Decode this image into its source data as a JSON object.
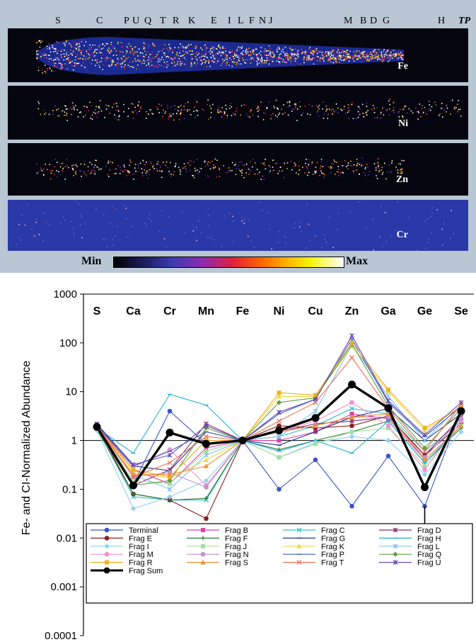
{
  "maps": {
    "fragment_labels": [
      "S",
      "C",
      "P",
      "U",
      "Q",
      "T",
      "R",
      "K",
      "E",
      "I",
      "L",
      "F",
      "N",
      "J",
      "M",
      "B",
      "D",
      "G",
      "H",
      "TP"
    ],
    "strips": [
      {
        "element": "Fe",
        "color_bg": "#05050f"
      },
      {
        "element": "Ni",
        "color_bg": "#05050f"
      },
      {
        "element": "Zn",
        "color_bg": "#05050f"
      },
      {
        "element": "Cr",
        "color_bg": "#2b39a8"
      }
    ],
    "scale": {
      "min_label": "Min",
      "max_label": "Max"
    }
  },
  "chart_data": {
    "type": "line",
    "ylabel": "Fe- and CI-Normalized Abundance",
    "y_scale": "log",
    "ylim": [
      0.0001,
      1000
    ],
    "y_ticks": [
      "1000",
      "100",
      "10",
      "1",
      "0.1",
      "0.01",
      "0.001",
      "0.0001"
    ],
    "categories": [
      "S",
      "Ca",
      "Cr",
      "Mn",
      "Fe",
      "Ni",
      "Cu",
      "Zn",
      "Ga",
      "Ge",
      "Se"
    ],
    "reference_line": 1,
    "series": [
      {
        "name": "Terminal",
        "color": "#3a55c8",
        "marker": "circle",
        "values": [
          1.9,
          0.13,
          4.0,
          0.85,
          1,
          0.1,
          0.4,
          0.045,
          0.48,
          0.045,
          4.2
        ]
      },
      {
        "name": "Frag B",
        "color": "#e040a0",
        "marker": "square",
        "values": [
          2.0,
          0.25,
          0.13,
          0.7,
          1,
          1.0,
          1.5,
          3.5,
          2.8,
          0.4,
          2.0
        ]
      },
      {
        "name": "Frag C",
        "color": "#30c0c8",
        "marker": "x",
        "values": [
          1.8,
          0.07,
          0.06,
          0.06,
          1,
          1.2,
          2.0,
          4.5,
          3.5,
          0.6,
          2.5
        ]
      },
      {
        "name": "Frag D",
        "color": "#8a2a6a",
        "marker": "star",
        "values": [
          1.9,
          0.12,
          0.25,
          2.2,
          1,
          1.5,
          2.2,
          2.5,
          3.0,
          0.5,
          3.0
        ]
      },
      {
        "name": "Frag E",
        "color": "#8a2020",
        "marker": "circle",
        "values": [
          2.0,
          0.08,
          0.06,
          0.025,
          1,
          2.0,
          1.8,
          2.0,
          3.2,
          0.5,
          2.2
        ]
      },
      {
        "name": "Frag F",
        "color": "#2a7a3a",
        "marker": "plus",
        "values": [
          1.7,
          0.08,
          0.06,
          0.065,
          1,
          0.65,
          1.0,
          1.5,
          2.5,
          0.35,
          1.8
        ]
      },
      {
        "name": "Frag G",
        "color": "#203a90",
        "marker": "dash",
        "values": [
          2.1,
          0.3,
          0.24,
          1.5,
          1,
          0.8,
          1.5,
          3.0,
          4.5,
          1.0,
          3.5
        ]
      },
      {
        "name": "Frag H",
        "color": "#20b0e0",
        "marker": "dash",
        "values": [
          1.8,
          0.55,
          8.8,
          5.3,
          1,
          0.6,
          1.0,
          0.55,
          2.5,
          0.35,
          2.0
        ]
      },
      {
        "name": "Frag I",
        "color": "#90d0f0",
        "marker": "diamond",
        "values": [
          1.6,
          0.04,
          0.07,
          0.15,
          1,
          0.45,
          0.9,
          1.2,
          1.0,
          0.2,
          1.5
        ]
      },
      {
        "name": "Frag J",
        "color": "#a0e0a0",
        "marker": "square",
        "values": [
          1.9,
          0.15,
          0.13,
          0.6,
          1,
          0.45,
          0.85,
          1.5,
          1.8,
          0.3,
          2.0
        ]
      },
      {
        "name": "Frag K",
        "color": "#f0d840",
        "marker": "triangle",
        "values": [
          2.0,
          0.22,
          0.17,
          0.4,
          1,
          8.0,
          8.0,
          85,
          10,
          1.6,
          5.0
        ]
      },
      {
        "name": "Frag L",
        "color": "#80c0f0",
        "marker": "star",
        "values": [
          1.8,
          0.2,
          0.1,
          0.5,
          1,
          1.2,
          4.0,
          90,
          8,
          1.0,
          5.5
        ]
      },
      {
        "name": "Frag M",
        "color": "#f090d0",
        "marker": "circle",
        "values": [
          2.0,
          0.28,
          0.65,
          0.12,
          1,
          1.5,
          2.5,
          6.0,
          2.0,
          0.25,
          2.5
        ]
      },
      {
        "name": "Frag N",
        "color": "#c090d0",
        "marker": "circle",
        "values": [
          1.9,
          0.18,
          0.22,
          0.11,
          1,
          1.5,
          2.0,
          3.0,
          3.0,
          0.45,
          2.8
        ]
      },
      {
        "name": "Frag P",
        "color": "#4060c0",
        "marker": "dash",
        "values": [
          2.0,
          0.3,
          0.6,
          1.5,
          1,
          3.5,
          7.0,
          120,
          6,
          1.2,
          5.0
        ]
      },
      {
        "name": "Frag Q",
        "color": "#60a040",
        "marker": "diamond",
        "values": [
          1.8,
          0.12,
          0.15,
          1.8,
          1,
          6.0,
          7.5,
          95,
          5,
          0.7,
          4.5
        ]
      },
      {
        "name": "Frag R",
        "color": "#f0b020",
        "marker": "square",
        "values": [
          1.9,
          0.25,
          0.18,
          1.0,
          1,
          9.5,
          8.5,
          100,
          11,
          1.8,
          4.8
        ]
      },
      {
        "name": "Frag S",
        "color": "#f09030",
        "marker": "triangle",
        "values": [
          1.8,
          0.2,
          0.2,
          0.3,
          1,
          1.5,
          2.0,
          3.0,
          3.5,
          0.4,
          2.0
        ]
      },
      {
        "name": "Frag T",
        "color": "#f07050",
        "marker": "x",
        "values": [
          2.1,
          0.18,
          0.35,
          1.2,
          1,
          2.5,
          6.0,
          50,
          4.5,
          0.6,
          5.5
        ]
      },
      {
        "name": "Frag U",
        "color": "#6a4ab0",
        "marker": "star",
        "values": [
          2.2,
          0.32,
          0.5,
          2.0,
          1,
          3.8,
          7.0,
          140,
          6.5,
          1.3,
          6.0
        ]
      },
      {
        "name": "Frag Sum",
        "color": "#000000",
        "marker": "circle",
        "values": [
          1.9,
          0.12,
          1.45,
          0.85,
          1,
          1.6,
          2.9,
          14,
          4.6,
          0.11,
          4.0
        ],
        "bold": true
      }
    ],
    "annotations": [
      "Ge detection-limit arrow on Terminal"
    ],
    "legend_placement": "bottom-inside"
  }
}
